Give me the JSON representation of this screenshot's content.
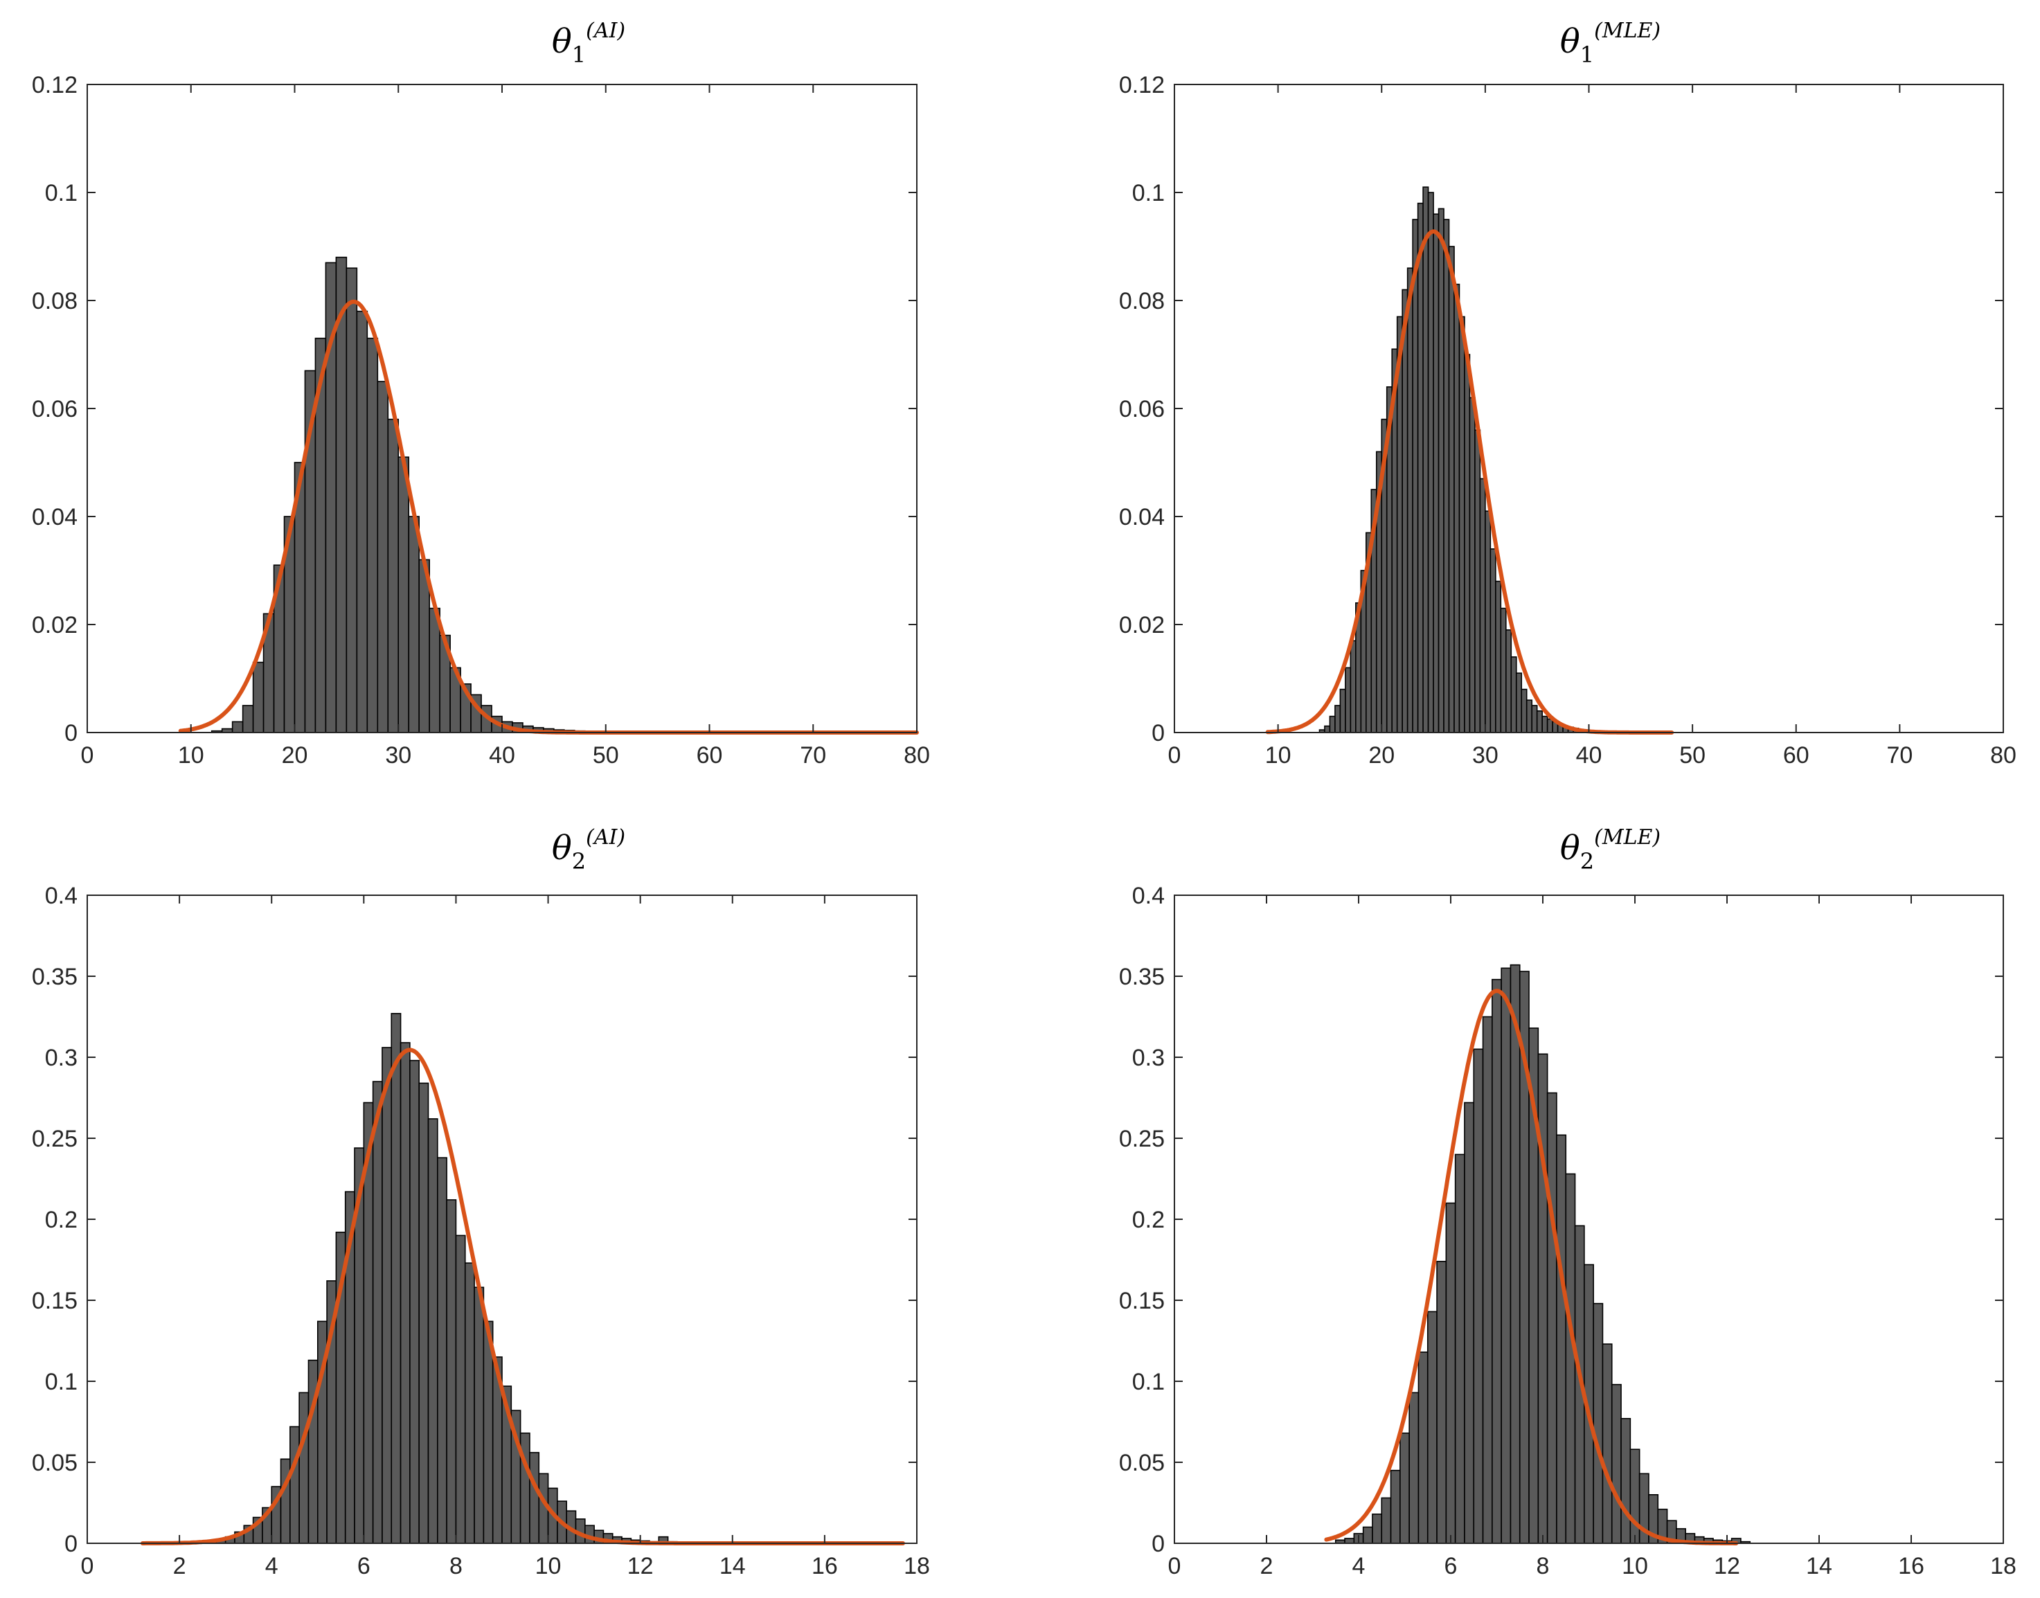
{
  "colors": {
    "bar_fill": "#5a5a5a",
    "bar_edge": "#000000",
    "fit_line": "#d95319",
    "axis": "#262626"
  },
  "chart_data": [
    {
      "type": "bar",
      "title": {
        "symbol": "θ",
        "subscript": "1",
        "superscript": "(AI)"
      },
      "xlim": [
        0,
        80
      ],
      "ylim": [
        0,
        0.12
      ],
      "xticks": [
        "0",
        "10",
        "20",
        "30",
        "40",
        "50",
        "60",
        "70",
        "80"
      ],
      "yticks": [
        "0",
        "0.02",
        "0.04",
        "0.06",
        "0.08",
        "0.1",
        "0.12"
      ],
      "bin_start": 12,
      "bin_width": 1,
      "values": [
        0.0003,
        0.0007,
        0.002,
        0.005,
        0.013,
        0.022,
        0.031,
        0.04,
        0.05,
        0.067,
        0.073,
        0.087,
        0.088,
        0.086,
        0.078,
        0.073,
        0.065,
        0.058,
        0.051,
        0.04,
        0.032,
        0.023,
        0.018,
        0.012,
        0.009,
        0.007,
        0.005,
        0.003,
        0.002,
        0.0018,
        0.0012,
        0.0009,
        0.0007,
        0.0005,
        0.0004,
        0.0003,
        0.0002,
        0.0002,
        0.0001,
        0.0001
      ],
      "fit": {
        "kind": "normal",
        "mean": 25.7,
        "sd": 5.0,
        "x_range": [
          9,
          80
        ]
      }
    },
    {
      "type": "bar",
      "title": {
        "symbol": "θ",
        "subscript": "1",
        "superscript": "(MLE)"
      },
      "xlim": [
        0,
        80
      ],
      "ylim": [
        0,
        0.12
      ],
      "xticks": [
        "0",
        "10",
        "20",
        "30",
        "40",
        "50",
        "60",
        "70",
        "80"
      ],
      "yticks": [
        "0",
        "0.02",
        "0.04",
        "0.06",
        "0.08",
        "0.1",
        "0.12"
      ],
      "bin_start": 14,
      "bin_width": 0.5,
      "values": [
        0.0005,
        0.0012,
        0.003,
        0.005,
        0.008,
        0.012,
        0.017,
        0.024,
        0.03,
        0.037,
        0.045,
        0.052,
        0.058,
        0.064,
        0.071,
        0.077,
        0.082,
        0.086,
        0.095,
        0.098,
        0.101,
        0.1,
        0.096,
        0.097,
        0.095,
        0.09,
        0.083,
        0.077,
        0.07,
        0.062,
        0.056,
        0.047,
        0.041,
        0.034,
        0.028,
        0.023,
        0.019,
        0.014,
        0.011,
        0.008,
        0.006,
        0.005,
        0.004,
        0.003,
        0.0025,
        0.002,
        0.0015,
        0.0012,
        0.001,
        0.0008,
        0.0006,
        0.0005,
        0.0004,
        0.0003,
        0.0003,
        0.0002
      ],
      "fit": {
        "kind": "normal",
        "mean": 25.0,
        "sd": 4.3,
        "x_range": [
          9,
          48
        ]
      }
    },
    {
      "type": "bar",
      "title": {
        "symbol": "θ",
        "subscript": "2",
        "superscript": "(AI)"
      },
      "xlim": [
        0,
        18
      ],
      "ylim": [
        0,
        0.4
      ],
      "xticks": [
        "0",
        "2",
        "4",
        "6",
        "8",
        "10",
        "12",
        "14",
        "16",
        "18"
      ],
      "yticks": [
        "0",
        "0.05",
        "0.1",
        "0.15",
        "0.2",
        "0.25",
        "0.3",
        "0.35",
        "0.4"
      ],
      "bin_start": 2.8,
      "bin_width": 0.2,
      "values": [
        0.002,
        0.004,
        0.007,
        0.011,
        0.016,
        0.022,
        0.035,
        0.052,
        0.072,
        0.093,
        0.113,
        0.137,
        0.162,
        0.192,
        0.217,
        0.244,
        0.272,
        0.285,
        0.306,
        0.327,
        0.309,
        0.298,
        0.284,
        0.262,
        0.238,
        0.212,
        0.19,
        0.173,
        0.158,
        0.137,
        0.115,
        0.097,
        0.082,
        0.068,
        0.056,
        0.043,
        0.034,
        0.026,
        0.02,
        0.015,
        0.011,
        0.008,
        0.006,
        0.004,
        0.003,
        0.002,
        0.0015,
        0.001,
        0.004,
        0.001,
        0.0005
      ],
      "fit": {
        "kind": "normal",
        "mean": 7.0,
        "sd": 1.31,
        "x_range": [
          1.2,
          17.7
        ]
      }
    },
    {
      "type": "bar",
      "title": {
        "symbol": "θ",
        "subscript": "2",
        "superscript": "(MLE)"
      },
      "xlim": [
        0,
        18
      ],
      "ylim": [
        0,
        0.4
      ],
      "xticks": [
        "0",
        "2",
        "4",
        "6",
        "8",
        "10",
        "12",
        "14",
        "16",
        "18"
      ],
      "yticks": [
        "0",
        "0.05",
        "0.1",
        "0.15",
        "0.2",
        "0.25",
        "0.3",
        "0.35",
        "0.4"
      ],
      "bin_start": 3.5,
      "bin_width": 0.2,
      "values": [
        0.002,
        0.003,
        0.006,
        0.01,
        0.018,
        0.028,
        0.045,
        0.068,
        0.093,
        0.118,
        0.143,
        0.174,
        0.21,
        0.24,
        0.272,
        0.305,
        0.325,
        0.348,
        0.355,
        0.357,
        0.353,
        0.318,
        0.302,
        0.278,
        0.252,
        0.228,
        0.196,
        0.172,
        0.148,
        0.123,
        0.098,
        0.077,
        0.058,
        0.043,
        0.03,
        0.021,
        0.014,
        0.009,
        0.006,
        0.004,
        0.003,
        0.002,
        0.0015,
        0.003,
        0.001
      ],
      "fit": {
        "kind": "normal",
        "mean": 7.0,
        "sd": 1.17,
        "x_range": [
          3.3,
          12.2
        ]
      }
    }
  ]
}
